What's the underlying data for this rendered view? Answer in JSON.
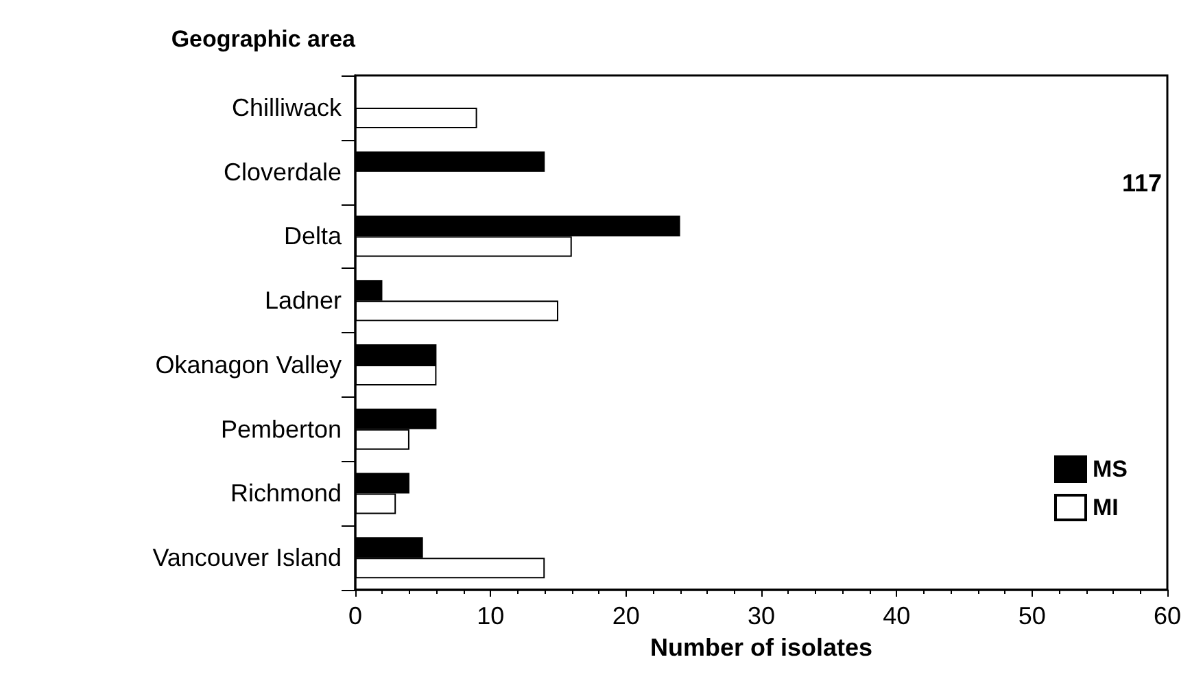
{
  "chart_data": {
    "type": "bar",
    "orientation": "horizontal",
    "xlabel": "Number of isolates",
    "ylabel": "Geographic area",
    "categories": [
      "Chilliwack",
      "Cloverdale",
      "Delta",
      "Ladner",
      "Okanagon Valley",
      "Pemberton",
      "Richmond",
      "Vancouver Island"
    ],
    "series": [
      {
        "name": "MS",
        "color": "#000000",
        "values": [
          0,
          14,
          24,
          2,
          6,
          6,
          4,
          5
        ]
      },
      {
        "name": "MI",
        "color": "#ffffff",
        "values": [
          9,
          null,
          16,
          15,
          6,
          4,
          3,
          14
        ]
      }
    ],
    "annotations": [
      "117"
    ],
    "xlim": [
      0,
      60
    ],
    "xticks": [
      0,
      10,
      20,
      30,
      40,
      50,
      60
    ],
    "grid": false,
    "legend": "bottom right"
  }
}
